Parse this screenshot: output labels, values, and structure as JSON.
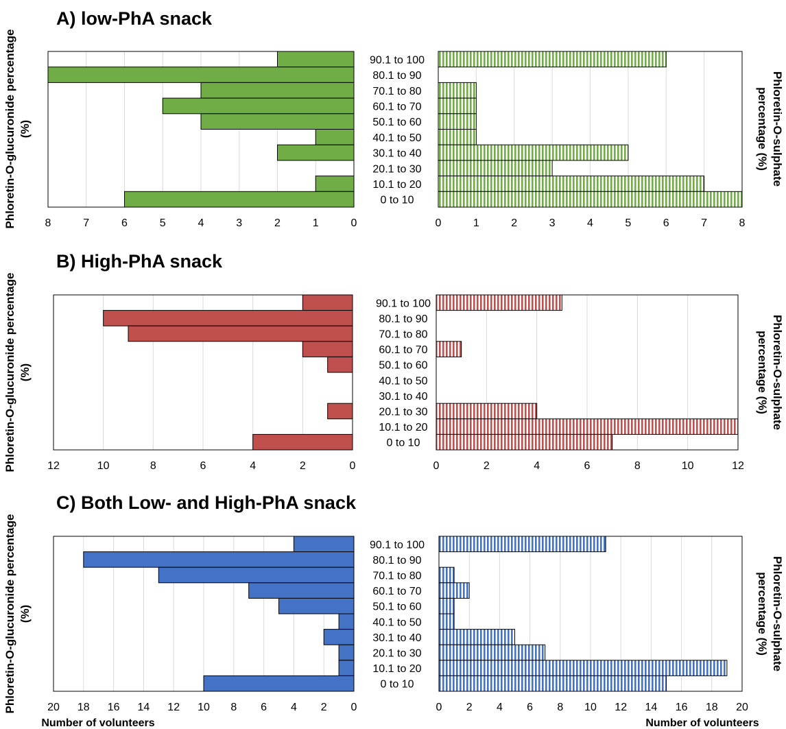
{
  "chart_data": [
    {
      "type": "bar",
      "title": "A) low-PhA snack",
      "categories": [
        "90.1 to 100",
        "80.1 to 90",
        "70.1 to 80",
        "60.1 to 70",
        "50.1 to 60",
        "40.1 to 50",
        "30.1 to 40",
        "20.1 to 30",
        "10.1 to 20",
        "0 to 10"
      ],
      "series": [
        {
          "name": "Phloretin-O-glucuronide percentage (%)",
          "values": [
            2,
            8,
            4,
            5,
            4,
            1,
            2,
            0,
            1,
            6
          ]
        },
        {
          "name": "Phloretin-O-sulphate percentage (%)",
          "values": [
            6,
            0,
            1,
            1,
            1,
            1,
            5,
            3,
            7,
            8
          ]
        }
      ],
      "xlim": [
        0,
        8
      ],
      "ticks": [
        0,
        1,
        2,
        3,
        4,
        5,
        6,
        7,
        8
      ],
      "left_ylabel": "Phloretin-O-glucuronide percentage (%)",
      "right_ylabel": "Phloretin-O-sulphate percentage (%)",
      "xlabel": "",
      "color": "#70AD47"
    },
    {
      "type": "bar",
      "title": "B) High-PhA snack",
      "categories": [
        "90.1 to 100",
        "80.1 to 90",
        "70.1 to 80",
        "60.1 to 70",
        "50.1 to 60",
        "40.1 to 50",
        "30.1 to 40",
        "20.1 to 30",
        "10.1 to 20",
        "0 to 10"
      ],
      "series": [
        {
          "name": "Phloretin-O-glucuronide percentage (%)",
          "values": [
            2,
            10,
            9,
            2,
            1,
            0,
            0,
            1,
            0,
            4
          ]
        },
        {
          "name": "Phloretin-O-sulphate percentage (%)",
          "values": [
            5,
            0,
            0,
            1,
            0,
            0,
            0,
            4,
            12,
            7
          ]
        }
      ],
      "xlim": [
        0,
        12
      ],
      "ticks": [
        0,
        2,
        4,
        6,
        8,
        10,
        12
      ],
      "left_ylabel": "Phloretin-O-glucuronide percentage (%)",
      "right_ylabel": "Phloretin-O-sulphate percentage (%)",
      "xlabel": "",
      "color": "#C0504D"
    },
    {
      "type": "bar",
      "title": "C) Both Low- and High-PhA snack",
      "categories": [
        "90.1 to 100",
        "80.1 to 90",
        "70.1 to 80",
        "60.1 to 70",
        "50.1 to 60",
        "40.1 to 50",
        "30.1 to 40",
        "20.1 to 30",
        "10.1 to 20",
        "0 to 10"
      ],
      "series": [
        {
          "name": "Phloretin-O-glucuronide percentage (%)",
          "values": [
            4,
            18,
            13,
            7,
            5,
            1,
            2,
            1,
            1,
            10
          ]
        },
        {
          "name": "Phloretin-O-sulphate percentage (%)",
          "values": [
            11,
            0,
            1,
            2,
            1,
            1,
            5,
            7,
            19,
            15
          ]
        }
      ],
      "xlim": [
        0,
        20
      ],
      "ticks": [
        0,
        2,
        4,
        6,
        8,
        10,
        12,
        14,
        16,
        18,
        20
      ],
      "left_ylabel": "Phloretin-O-glucuronide percentage (%)",
      "right_ylabel": "Phloretin-O-sulphate percentage (%)",
      "xlabel": "Number of volunteers",
      "color": "#4472C4"
    }
  ]
}
